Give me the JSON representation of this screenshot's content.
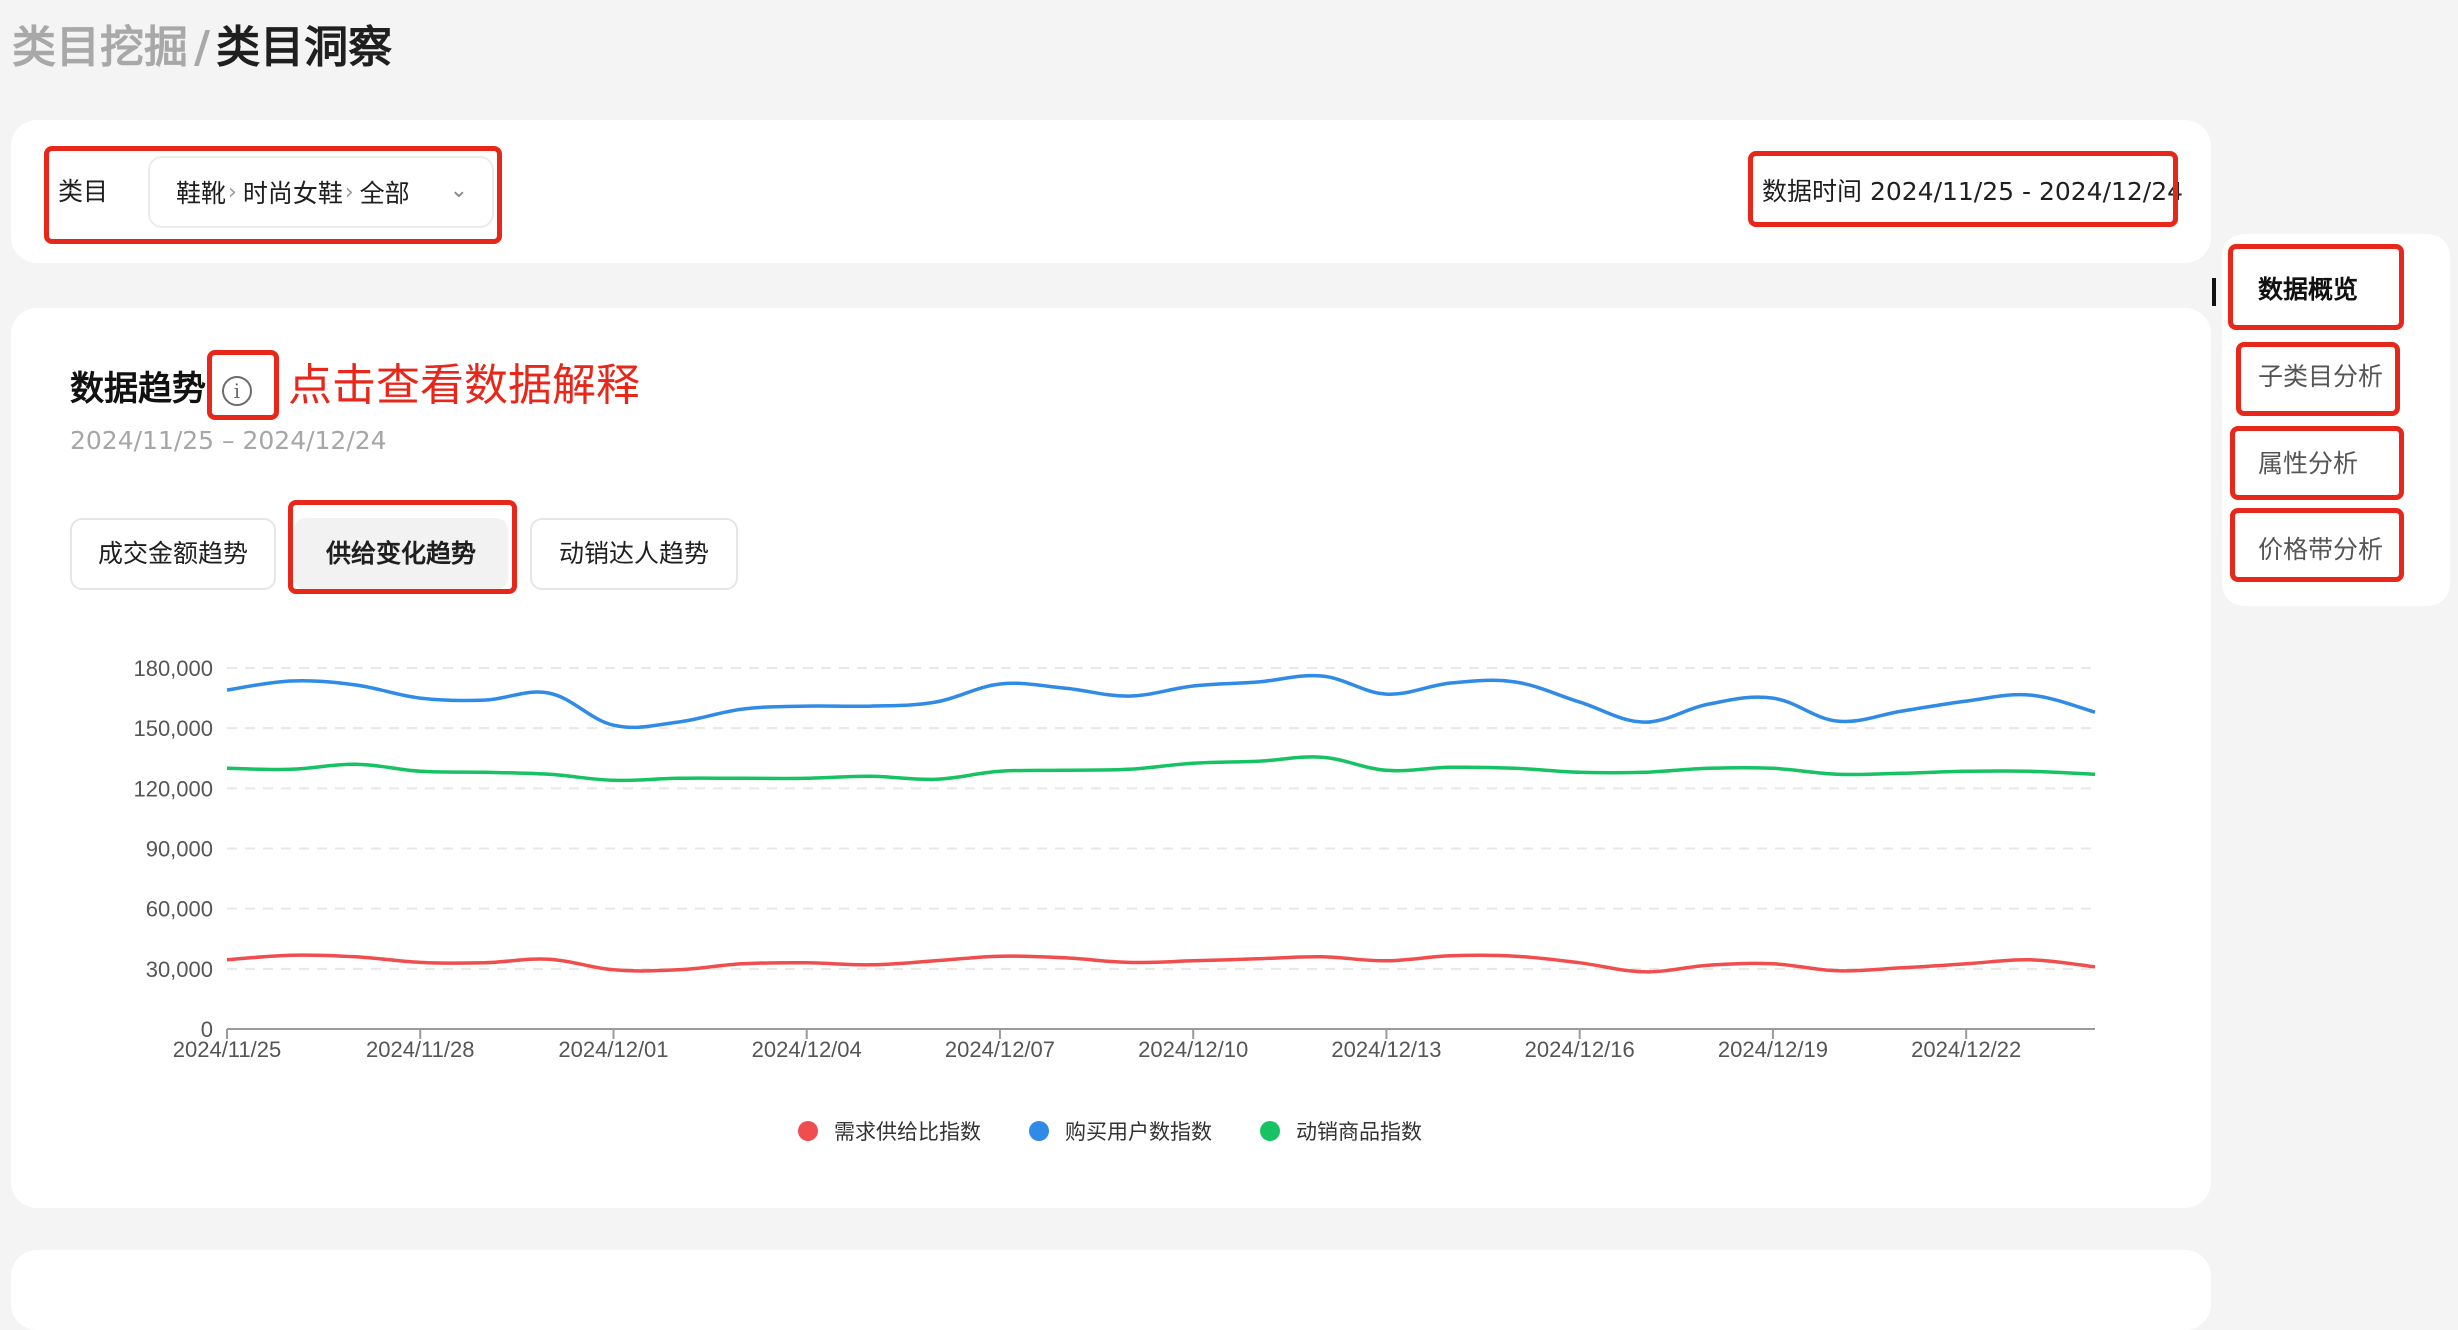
{
  "breadcrumb": {
    "parent": "类目挖掘",
    "separator": "/",
    "current": "类目洞察"
  },
  "filter": {
    "category_label": "类目",
    "category_path": [
      "鞋靴",
      "时尚女鞋",
      "全部"
    ],
    "date_range": "数据时间 2024/11/25 - 2024/12/24"
  },
  "trend": {
    "title": "数据趋势",
    "date": "2024/11/25 – 2024/12/24",
    "annotation": "点击查看数据解释",
    "info_glyph": "i"
  },
  "tabs": [
    {
      "label": "成交金额趋势",
      "active": false
    },
    {
      "label": "供给变化趋势",
      "active": true
    },
    {
      "label": "动销达人趋势",
      "active": false
    }
  ],
  "side_nav": [
    {
      "label": "数据概览",
      "active": true
    },
    {
      "label": "子类目分析",
      "active": false
    },
    {
      "label": "属性分析",
      "active": false
    },
    {
      "label": "价格带分析",
      "active": false
    }
  ],
  "colors": {
    "red_annotation": "#e8271b",
    "demand_ratio": "#f04e4e",
    "buyers": "#2f8be6",
    "selling_items": "#17c264"
  },
  "chart_data": {
    "type": "line",
    "title": "",
    "xlabel": "",
    "ylabel": "",
    "ylim": [
      0,
      180000
    ],
    "yticks": [
      "0",
      "30,000",
      "60,000",
      "90,000",
      "120,000",
      "150,000",
      "180,000"
    ],
    "xticks": [
      "2024/11/25",
      "2024/11/28",
      "2024/12/01",
      "2024/12/04",
      "2024/12/07",
      "2024/12/10",
      "2024/12/13",
      "2024/12/16",
      "2024/12/19",
      "2024/12/22"
    ],
    "grid": true,
    "legend_position": "bottom",
    "x": [
      "2024/11/25",
      "2024/11/26",
      "2024/11/27",
      "2024/11/28",
      "2024/11/29",
      "2024/11/30",
      "2024/12/01",
      "2024/12/02",
      "2024/12/03",
      "2024/12/04",
      "2024/12/05",
      "2024/12/06",
      "2024/12/07",
      "2024/12/08",
      "2024/12/09",
      "2024/12/10",
      "2024/12/11",
      "2024/12/12",
      "2024/12/13",
      "2024/12/14",
      "2024/12/15",
      "2024/12/16",
      "2024/12/17",
      "2024/12/18",
      "2024/12/19",
      "2024/12/20",
      "2024/12/21",
      "2024/12/22",
      "2024/12/23",
      "2024/12/24"
    ],
    "series": [
      {
        "name": "需求供给比指数",
        "color": "#f04e4e",
        "values": [
          34500,
          36800,
          36000,
          33200,
          33000,
          34800,
          29500,
          29500,
          32500,
          33000,
          32000,
          34000,
          36300,
          35500,
          33200,
          34000,
          35000,
          36000,
          34000,
          36500,
          36300,
          33000,
          28500,
          31800,
          32500,
          29000,
          30500,
          32500,
          34500,
          31000
        ]
      },
      {
        "name": "购买用户数指数",
        "color": "#2f8be6",
        "values": [
          169000,
          173500,
          171500,
          165000,
          164000,
          167500,
          151500,
          153000,
          159500,
          161000,
          161000,
          163000,
          172000,
          170000,
          166000,
          171000,
          173000,
          176000,
          167000,
          172500,
          173000,
          163000,
          153000,
          162000,
          165000,
          153500,
          158500,
          163500,
          166500,
          158000
        ]
      },
      {
        "name": "动销商品指数",
        "color": "#17c264",
        "values": [
          130000,
          129500,
          132000,
          128500,
          128000,
          127000,
          124000,
          125000,
          125000,
          125000,
          126000,
          124500,
          128500,
          129000,
          129500,
          132500,
          133500,
          135500,
          129000,
          130500,
          130000,
          128000,
          128000,
          130000,
          130000,
          127000,
          127500,
          128500,
          128500,
          127000
        ]
      }
    ]
  }
}
